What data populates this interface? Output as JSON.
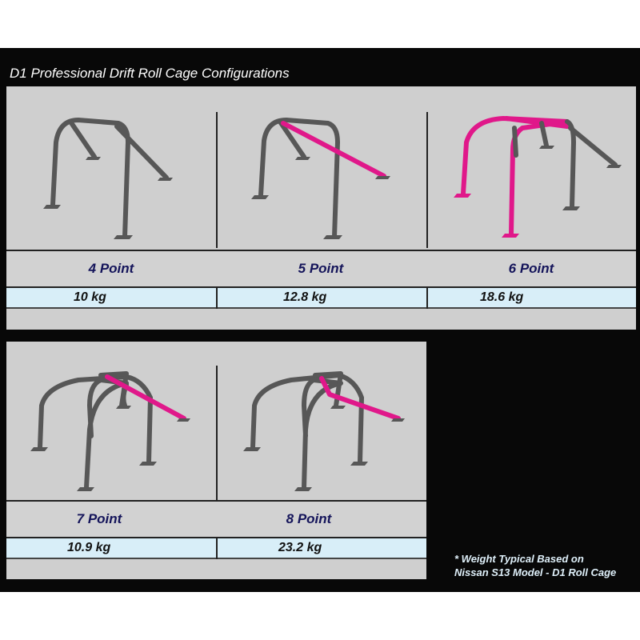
{
  "title": "D1 Professional Drift Roll Cage Configurations",
  "colors": {
    "highlight_tube": "#e0188a",
    "tube": "#575757",
    "label_text": "#14145a",
    "weight_band": "#d8eef8"
  },
  "configs": [
    {
      "label": "4 Point",
      "weight": "10 kg"
    },
    {
      "label": "5 Point",
      "weight": "12.8 kg"
    },
    {
      "label": "6 Point",
      "weight": "18.6 kg"
    },
    {
      "label": "7 Point",
      "weight": "10.9 kg"
    },
    {
      "label": "8 Point",
      "weight": "23.2 kg"
    }
  ],
  "footnote": {
    "line1": "* Weight Typical Based on",
    "line2": "Nissan S13 Model - D1 Roll Cage"
  }
}
